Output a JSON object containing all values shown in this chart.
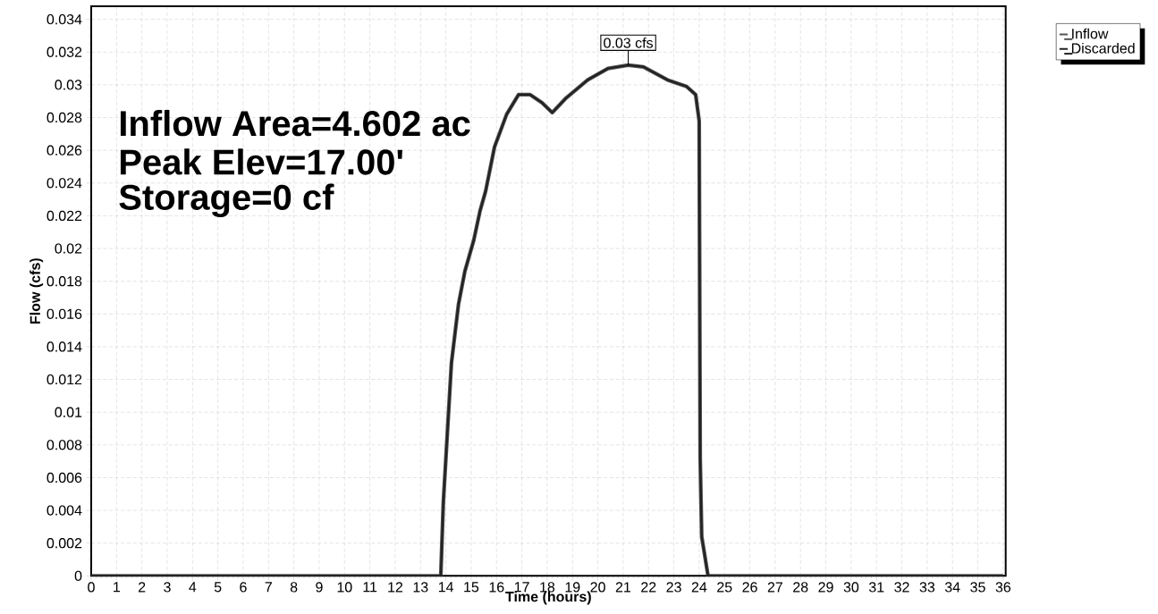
{
  "chart_data": {
    "type": "line",
    "xlabel": "Time  (hours)",
    "ylabel": "Flow  (cfs)",
    "xlim": [
      0,
      36.1
    ],
    "ylim": [
      0,
      0.0348
    ],
    "xticks": [
      0,
      1,
      2,
      3,
      4,
      5,
      6,
      7,
      8,
      9,
      10,
      11,
      12,
      13,
      14,
      15,
      16,
      17,
      18,
      19,
      20,
      21,
      22,
      23,
      24,
      25,
      26,
      27,
      28,
      29,
      30,
      31,
      32,
      33,
      34,
      35,
      36
    ],
    "yticks": [
      0,
      0.002,
      0.004,
      0.006,
      0.008,
      0.01,
      0.012,
      0.014,
      0.016,
      0.018,
      0.02,
      0.022,
      0.024,
      0.026,
      0.028,
      0.03,
      0.032,
      0.034
    ],
    "x": [
      0,
      13.8,
      13.9,
      14.22,
      14.5,
      14.75,
      15.1,
      15.35,
      15.57,
      15.92,
      16.4,
      16.87,
      17.33,
      17.8,
      18.2,
      18.75,
      19.6,
      20.4,
      21.2,
      21.8,
      22.75,
      23.5,
      23.86,
      24.0,
      24.04,
      24.1,
      24.35,
      36
    ],
    "series": [
      {
        "name": "Inflow",
        "color": "#555555",
        "values": [
          0,
          0,
          0.0045,
          0.013,
          0.0166,
          0.0186,
          0.0205,
          0.0223,
          0.0235,
          0.0262,
          0.0282,
          0.0294,
          0.0294,
          0.0289,
          0.0283,
          0.0292,
          0.0303,
          0.031,
          0.0312,
          0.0311,
          0.0303,
          0.0299,
          0.0294,
          0.0278,
          0.0072,
          0.0024,
          0,
          0
        ]
      },
      {
        "name": "Discarded",
        "color": "#222222",
        "values": [
          0,
          0,
          0.0045,
          0.013,
          0.0166,
          0.0186,
          0.0205,
          0.0223,
          0.0235,
          0.0262,
          0.0282,
          0.0294,
          0.0294,
          0.0289,
          0.0283,
          0.0292,
          0.0303,
          0.031,
          0.0312,
          0.0311,
          0.0303,
          0.0299,
          0.0294,
          0.0278,
          0.0072,
          0.0024,
          0,
          0
        ]
      }
    ],
    "grid": true,
    "legend": "top right",
    "marker": "none",
    "line_style": "solid",
    "annotations": [
      "Inflow Area=4.602 ac",
      "Peak Elev=17.00'",
      "Storage=0 cf",
      {
        "text": "0.03 cfs",
        "x": 21.2,
        "y": 0.0312
      }
    ]
  }
}
